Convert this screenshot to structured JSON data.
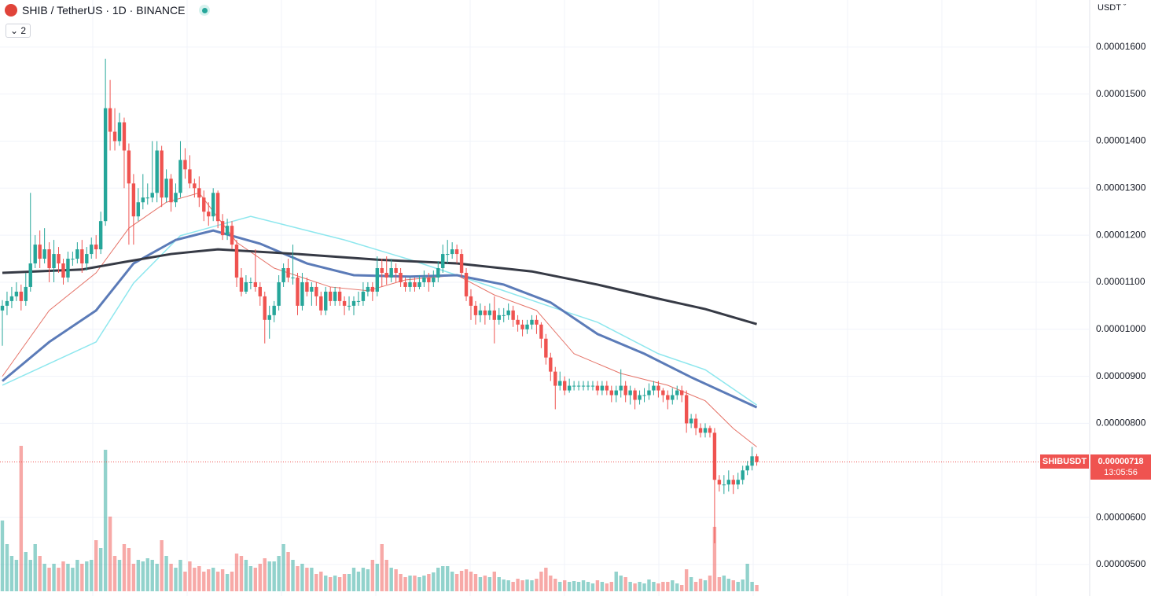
{
  "chart_data": {
    "type": "candlestick",
    "title": "SHIB / TetherUS · 1D · BINANCE",
    "indicator_count": 2,
    "currency": "USDT",
    "last_price": {
      "symbol": "SHIBUSDT",
      "price": "0.00000718",
      "countdown": "13:05:56",
      "color": "#ef5350"
    },
    "up_color": "#26a69a",
    "down_color": "#ef5350",
    "grid": true,
    "ylim": [
      4.33e-06,
      1.7e-05
    ],
    "yticks": [
      {
        "value": 1.6e-05,
        "label": "0.00001600"
      },
      {
        "value": 1.5e-05,
        "label": "0.00001500"
      },
      {
        "value": 1.4e-05,
        "label": "0.00001400"
      },
      {
        "value": 1.3e-05,
        "label": "0.00001300"
      },
      {
        "value": 1.2e-05,
        "label": "0.00001200"
      },
      {
        "value": 1.1e-05,
        "label": "0.00001100"
      },
      {
        "value": 1e-05,
        "label": "0.00001000"
      },
      {
        "value": 9e-06,
        "label": "0.00000900"
      },
      {
        "value": 8e-06,
        "label": "0.00000800"
      },
      {
        "value": 6e-06,
        "label": "0.00000600"
      },
      {
        "value": 5e-06,
        "label": "0.00000500"
      }
    ],
    "open": [
      1.04e-05,
      1.05e-05,
      1.06e-05,
      1.07e-05,
      1.08e-05,
      1.06e-05,
      1.09e-05,
      1.14e-05,
      1.18e-05,
      1.15e-05,
      1.17e-05,
      1.13e-05,
      1.16e-05,
      1.14e-05,
      1.11e-05,
      1.15e-05,
      1.15e-05,
      1.17e-05,
      1.14e-05,
      1.16e-05,
      1.18e-05,
      1.17e-05,
      1.23e-05,
      1.47e-05,
      1.42e-05,
      1.4e-05,
      1.44e-05,
      1.38e-05,
      1.31e-05,
      1.24e-05,
      1.27e-05,
      1.28e-05,
      1.28e-05,
      1.29e-05,
      1.38e-05,
      1.28e-05,
      1.32e-05,
      1.27e-05,
      1.29e-05,
      1.36e-05,
      1.34e-05,
      1.31e-05,
      1.3e-05,
      1.28e-05,
      1.25e-05,
      1.24e-05,
      1.29e-05,
      1.23e-05,
      1.2e-05,
      1.22e-05,
      1.18e-05,
      1.11e-05,
      1.08e-05,
      1.1e-05,
      1.1e-05,
      1.09e-05,
      1.07e-05,
      1.02e-05,
      1.03e-05,
      1.05e-05,
      1.1e-05,
      1.13e-05,
      1.11e-05,
      1.11e-05,
      1.05e-05,
      1.1e-05,
      1.08e-05,
      1.09e-05,
      1.07e-05,
      1.04e-05,
      1.08e-05,
      1.06e-05,
      1.08e-05,
      1.06e-05,
      1.05e-05,
      1.05e-05,
      1.06e-05,
      1.06e-05,
      1.08e-05,
      1.09e-05,
      1.08e-05,
      1.13e-05,
      1.12e-05,
      1.11e-05,
      1.13e-05,
      1.12e-05,
      1.1e-05,
      1.09e-05,
      1.1e-05,
      1.09e-05,
      1.1e-05,
      1.11e-05,
      1.1e-05,
      1.11e-05,
      1.13e-05,
      1.16e-05,
      1.16e-05,
      1.17e-05,
      1.16e-05,
      1.12e-05,
      1.07e-05,
      1.05e-05,
      1.03e-05,
      1.04e-05,
      1.03e-05,
      1.04e-05,
      1.02e-05,
      1.03e-05,
      1.03e-05,
      1.04e-05,
      1.02e-05,
      1.01e-05,
      1e-05,
      1.01e-05,
      1.02e-05,
      1.01e-05,
      9.8e-06,
      9.4e-06,
      9.1e-06,
      8.8e-06,
      8.9e-06,
      8.7e-06,
      8.8e-06,
      8.8e-06,
      8.8e-06,
      8.8e-06,
      8.8e-06,
      8.8e-06,
      8.7e-06,
      8.8e-06,
      8.7e-06,
      8.6e-06,
      8.7e-06,
      8.8e-06,
      8.6e-06,
      8.7e-06,
      8.5e-06,
      8.6e-06,
      8.6e-06,
      8.7e-06,
      8.8e-06,
      8.7e-06,
      8.6e-06,
      8.5e-06,
      8.6e-06,
      8.7e-06,
      8.6e-06,
      8e-06,
      8.1e-06,
      7.9e-06,
      7.8e-06,
      7.9e-06,
      7.8e-06,
      6.8e-06,
      6.7e-06,
      6.7e-06,
      6.8e-06,
      6.7e-06,
      6.8e-06,
      7e-06,
      7.1e-06,
      7.3e-06
    ],
    "high": [
      1.062e-05,
      1.08e-05,
      1.09e-05,
      1.1e-05,
      1.095e-05,
      1.12e-05,
      1.29e-05,
      1.2e-05,
      1.21e-05,
      1.215e-05,
      1.185e-05,
      1.19e-05,
      1.175e-05,
      1.15e-05,
      1.165e-05,
      1.165e-05,
      1.185e-05,
      1.19e-05,
      1.175e-05,
      1.195e-05,
      1.2e-05,
      1.25e-05,
      1.575e-05,
      1.53e-05,
      1.47e-05,
      1.46e-05,
      1.45e-05,
      1.395e-05,
      1.33e-05,
      1.3e-05,
      1.33e-05,
      1.31e-05,
      1.4e-05,
      1.4e-05,
      1.39e-05,
      1.34e-05,
      1.33e-05,
      1.31e-05,
      1.4e-05,
      1.385e-05,
      1.37e-05,
      1.32e-05,
      1.325e-05,
      1.295e-05,
      1.27e-05,
      1.3e-05,
      1.295e-05,
      1.245e-05,
      1.235e-05,
      1.23e-05,
      1.19e-05,
      1.13e-05,
      1.115e-05,
      1.11e-05,
      1.17e-05,
      1.1e-05,
      1.08e-05,
      1.05e-05,
      1.06e-05,
      1.115e-05,
      1.14e-05,
      1.15e-05,
      1.18e-05,
      1.12e-05,
      1.12e-05,
      1.11e-05,
      1.1e-05,
      1.1e-05,
      1.08e-05,
      1.09e-05,
      1.09e-05,
      1.09e-05,
      1.09e-05,
      1.07e-05,
      1.07e-05,
      1.07e-05,
      1.08e-05,
      1.1e-05,
      1.1e-05,
      1.1e-05,
      1.155e-05,
      1.15e-05,
      1.155e-05,
      1.15e-05,
      1.14e-05,
      1.13e-05,
      1.11e-05,
      1.11e-05,
      1.11e-05,
      1.115e-05,
      1.125e-05,
      1.12e-05,
      1.125e-05,
      1.145e-05,
      1.18e-05,
      1.19e-05,
      1.185e-05,
      1.18e-05,
      1.17e-05,
      1.13e-05,
      1.085e-05,
      1.06e-05,
      1.055e-05,
      1.05e-05,
      1.055e-05,
      1.07e-05,
      1.045e-05,
      1.045e-05,
      1.055e-05,
      1.05e-05,
      1.03e-05,
      1.02e-05,
      1.02e-05,
      1.03e-05,
      1.03e-05,
      1.015e-05,
      9.9e-06,
      9.5e-06,
      9.2e-06,
      9.1e-06,
      9e-06,
      8.95e-06,
      8.9e-06,
      8.9e-06,
      8.9e-06,
      8.9e-06,
      8.9e-06,
      8.9e-06,
      8.9e-06,
      8.9e-06,
      8.8e-06,
      8.8e-06,
      9.15e-06,
      8.9e-06,
      8.8e-06,
      8.75e-06,
      8.7e-06,
      8.75e-06,
      8.85e-06,
      8.9e-06,
      8.9e-06,
      8.75e-06,
      8.7e-06,
      8.75e-06,
      8.8e-06,
      8.8e-06,
      8.7e-06,
      8.2e-06,
      8.2e-06,
      8e-06,
      8e-06,
      7.95e-06,
      7.9e-06,
      6.9e-06,
      6.9e-06,
      7e-06,
      6.9e-06,
      6.95e-06,
      7.1e-06,
      7.2e-06,
      7.5e-06,
      7.35e-06
    ],
    "low": [
      9.65e-06,
      1.03e-05,
      1.045e-05,
      1.06e-05,
      1.04e-05,
      1.05e-05,
      1.08e-05,
      1.13e-05,
      1.13e-05,
      1.14e-05,
      1.1e-05,
      1.1e-05,
      1.12e-05,
      1.095e-05,
      1.1e-05,
      1.135e-05,
      1.14e-05,
      1.12e-05,
      1.125e-05,
      1.15e-05,
      1.15e-05,
      1.16e-05,
      1.22e-05,
      1.38e-05,
      1.38e-05,
      1.39e-05,
      1.3e-05,
      1.18e-05,
      1.18e-05,
      1.23e-05,
      1.255e-05,
      1.265e-05,
      1.27e-05,
      1.27e-05,
      1.26e-05,
      1.27e-05,
      1.25e-05,
      1.26e-05,
      1.28e-05,
      1.32e-05,
      1.3e-05,
      1.28e-05,
      1.26e-05,
      1.23e-05,
      1.22e-05,
      1.23e-05,
      1.215e-05,
      1.19e-05,
      1.19e-05,
      1.17e-05,
      1.09e-05,
      1.07e-05,
      1.075e-05,
      1.085e-05,
      1.08e-05,
      1.05e-05,
      9.7e-06,
      9.8e-06,
      1.015e-05,
      1.04e-05,
      1.09e-05,
      1.1e-05,
      1.095e-05,
      1.03e-05,
      1.04e-05,
      1.07e-05,
      1.05e-05,
      1.05e-05,
      1.03e-05,
      1.03e-05,
      1.05e-05,
      1.05e-05,
      1.05e-05,
      1.03e-05,
      1.04e-05,
      1.03e-05,
      1.05e-05,
      1.05e-05,
      1.07e-05,
      1.06e-05,
      1.07e-05,
      1.09e-05,
      1.095e-05,
      1.1e-05,
      1.1e-05,
      1.09e-05,
      1.08e-05,
      1.08e-05,
      1.08e-05,
      1.085e-05,
      1.09e-05,
      1.08e-05,
      1.09e-05,
      1.1e-05,
      1.12e-05,
      1.14e-05,
      1.15e-05,
      1.14e-05,
      1.11e-05,
      1.06e-05,
      1.02e-05,
      1.01e-05,
      1.015e-05,
      1.01e-05,
      1.02e-05,
      9.7e-06,
      1.01e-05,
      1.015e-05,
      1.02e-05,
      1.005e-05,
      9.95e-06,
      9.85e-06,
      9.9e-06,
      1e-05,
      9.9e-06,
      9.6e-06,
      9.25e-06,
      8.9e-06,
      8.3e-06,
      8.7e-06,
      8.6e-06,
      8.65e-06,
      8.7e-06,
      8.7e-06,
      8.7e-06,
      8.7e-06,
      8.7e-06,
      8.6e-06,
      8.6e-06,
      8.6e-06,
      8.45e-06,
      8.45e-06,
      8.55e-06,
      8.45e-06,
      8.4e-06,
      8.3e-06,
      8.4e-06,
      8.45e-06,
      8.5e-06,
      8.6e-06,
      8.55e-06,
      8.45e-06,
      8.3e-06,
      8.4e-06,
      8.5e-06,
      8.45e-06,
      7.8e-06,
      7.9e-06,
      7.75e-06,
      7.7e-06,
      7.7e-06,
      7.7e-06,
      5.45e-06,
      6.55e-06,
      6.5e-06,
      6.55e-06,
      6.5e-06,
      6.6e-06,
      6.7e-06,
      6.9e-06,
      7e-06,
      7.1e-06
    ],
    "close": [
      1.05e-05,
      1.06e-05,
      1.07e-05,
      1.08e-05,
      1.06e-05,
      1.09e-05,
      1.14e-05,
      1.18e-05,
      1.15e-05,
      1.17e-05,
      1.13e-05,
      1.16e-05,
      1.14e-05,
      1.11e-05,
      1.15e-05,
      1.15e-05,
      1.17e-05,
      1.14e-05,
      1.16e-05,
      1.18e-05,
      1.17e-05,
      1.23e-05,
      1.47e-05,
      1.42e-05,
      1.4e-05,
      1.44e-05,
      1.38e-05,
      1.31e-05,
      1.24e-05,
      1.27e-05,
      1.28e-05,
      1.28e-05,
      1.29e-05,
      1.38e-05,
      1.28e-05,
      1.32e-05,
      1.27e-05,
      1.29e-05,
      1.36e-05,
      1.34e-05,
      1.31e-05,
      1.3e-05,
      1.28e-05,
      1.25e-05,
      1.24e-05,
      1.29e-05,
      1.23e-05,
      1.2e-05,
      1.22e-05,
      1.18e-05,
      1.11e-05,
      1.08e-05,
      1.1e-05,
      1.1e-05,
      1.09e-05,
      1.07e-05,
      1.02e-05,
      1.03e-05,
      1.05e-05,
      1.1e-05,
      1.13e-05,
      1.11e-05,
      1.11e-05,
      1.05e-05,
      1.1e-05,
      1.08e-05,
      1.09e-05,
      1.07e-05,
      1.04e-05,
      1.08e-05,
      1.06e-05,
      1.08e-05,
      1.06e-05,
      1.05e-05,
      1.05e-05,
      1.06e-05,
      1.06e-05,
      1.08e-05,
      1.09e-05,
      1.08e-05,
      1.13e-05,
      1.12e-05,
      1.11e-05,
      1.13e-05,
      1.12e-05,
      1.1e-05,
      1.09e-05,
      1.1e-05,
      1.09e-05,
      1.1e-05,
      1.11e-05,
      1.1e-05,
      1.11e-05,
      1.13e-05,
      1.16e-05,
      1.16e-05,
      1.17e-05,
      1.16e-05,
      1.12e-05,
      1.07e-05,
      1.05e-05,
      1.03e-05,
      1.04e-05,
      1.03e-05,
      1.04e-05,
      1.02e-05,
      1.03e-05,
      1.03e-05,
      1.04e-05,
      1.02e-05,
      1.01e-05,
      1e-05,
      1.01e-05,
      1.02e-05,
      1.01e-05,
      9.8e-06,
      9.4e-06,
      9.1e-06,
      8.8e-06,
      8.9e-06,
      8.7e-06,
      8.8e-06,
      8.8e-06,
      8.8e-06,
      8.8e-06,
      8.8e-06,
      8.8e-06,
      8.7e-06,
      8.8e-06,
      8.7e-06,
      8.6e-06,
      8.7e-06,
      8.8e-06,
      8.6e-06,
      8.7e-06,
      8.5e-06,
      8.6e-06,
      8.6e-06,
      8.7e-06,
      8.8e-06,
      8.7e-06,
      8.6e-06,
      8.5e-06,
      8.6e-06,
      8.7e-06,
      8.6e-06,
      8e-06,
      8.1e-06,
      7.9e-06,
      7.8e-06,
      7.9e-06,
      7.8e-06,
      6.8e-06,
      6.7e-06,
      6.7e-06,
      6.8e-06,
      6.7e-06,
      6.8e-06,
      7e-06,
      7.1e-06,
      7.3e-06,
      7.18e-06
    ],
    "volume": [
      90,
      60,
      45,
      40,
      185,
      50,
      40,
      60,
      45,
      35,
      30,
      35,
      30,
      38,
      35,
      30,
      40,
      35,
      38,
      40,
      65,
      55,
      180,
      95,
      45,
      40,
      60,
      55,
      35,
      40,
      38,
      42,
      40,
      35,
      65,
      45,
      35,
      30,
      40,
      25,
      38,
      30,
      32,
      25,
      28,
      30,
      25,
      28,
      22,
      25,
      48,
      45,
      40,
      32,
      30,
      35,
      42,
      38,
      38,
      45,
      60,
      50,
      40,
      32,
      35,
      30,
      30,
      22,
      25,
      20,
      18,
      20,
      18,
      22,
      22,
      30,
      25,
      30,
      28,
      40,
      35,
      60,
      40,
      30,
      28,
      22,
      18,
      20,
      20,
      18,
      20,
      22,
      24,
      30,
      32,
      32,
      25,
      22,
      26,
      28,
      25,
      22,
      18,
      20,
      18,
      25,
      18,
      15,
      14,
      12,
      16,
      14,
      15,
      14,
      16,
      25,
      30,
      20,
      16,
      12,
      14,
      12,
      13,
      12,
      14,
      12,
      10,
      14,
      12,
      10,
      12,
      25,
      20,
      18,
      12,
      10,
      12,
      10,
      15,
      12,
      10,
      12,
      12,
      14,
      10,
      8,
      28,
      18,
      12,
      16,
      14,
      20,
      82,
      18,
      20,
      16,
      14,
      12,
      15,
      35,
      12,
      8
    ],
    "lines": [
      {
        "color": "#e57368",
        "width": 1,
        "x": [
          0,
          10,
          20,
          27,
          35,
          42,
          50,
          58,
          70,
          78,
          86,
          97,
          105,
          114,
          122,
          132,
          142,
          150,
          156,
          161
        ],
        "values": [
          9e-06,
          1.04e-05,
          1.12e-05,
          1.215e-05,
          1.27e-05,
          1.29e-05,
          1.185e-05,
          1.13e-05,
          1.09e-05,
          1.082e-05,
          1.105e-05,
          1.115e-05,
          1.073e-05,
          1.04e-05,
          9.48e-06,
          9.06e-06,
          8.81e-06,
          8.48e-06,
          7.89e-06,
          7.5e-06
        ]
      },
      {
        "color": "#8ee7ee",
        "width": 1.5,
        "x": [
          0,
          20,
          28,
          38,
          53,
          63,
          73,
          87,
          97,
          107,
          117,
          127,
          140,
          150,
          161
        ],
        "values": [
          8.81e-06,
          9.73e-06,
          1.098e-05,
          1.199e-05,
          1.24e-05,
          1.215e-05,
          1.19e-05,
          1.148e-05,
          1.115e-05,
          1.082e-05,
          1.048e-05,
          1.015e-05,
          9.48e-06,
          9.14e-06,
          8.39e-06
        ]
      },
      {
        "color": "#5b7bb8",
        "width": 3,
        "x": [
          0,
          10,
          20,
          28,
          37,
          45,
          55,
          65,
          75,
          87,
          97,
          107,
          117,
          127,
          137,
          147,
          161
        ],
        "values": [
          8.9e-06,
          9.73e-06,
          1.04e-05,
          1.14e-05,
          1.19e-05,
          1.21e-05,
          1.182e-05,
          1.14e-05,
          1.115e-05,
          1.112e-05,
          1.115e-05,
          1.095e-05,
          1.057e-05,
          9.9e-06,
          9.48e-06,
          8.98e-06,
          8.34e-06
        ]
      },
      {
        "color": "#363a45",
        "width": 3,
        "x": [
          0,
          17,
          26,
          36,
          46,
          63,
          80,
          97,
          113,
          127,
          140,
          150,
          161
        ],
        "values": [
          1.12e-05,
          1.127e-05,
          1.143e-05,
          1.16e-05,
          1.17e-05,
          1.16e-05,
          1.148e-05,
          1.14e-05,
          1.123e-05,
          1.095e-05,
          1.065e-05,
          1.043e-05,
          1.011e-05
        ]
      }
    ]
  }
}
